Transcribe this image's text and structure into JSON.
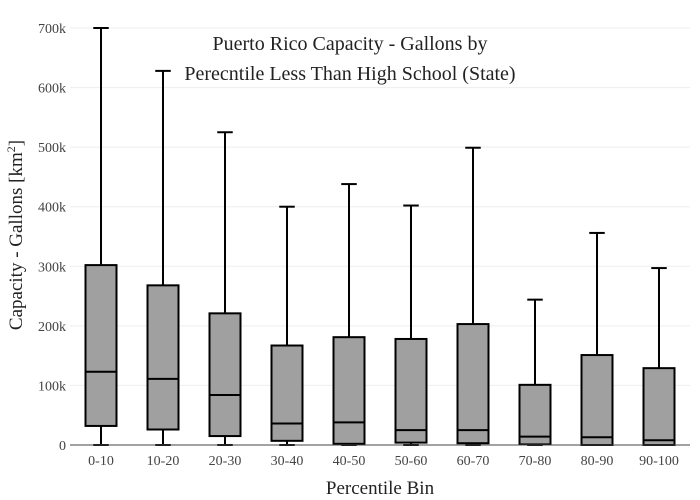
{
  "chart_data": {
    "type": "box",
    "title_lines": [
      "Puerto Rico Capacity - Gallons by",
      "Perecntile Less Than High School (State)"
    ],
    "xlabel": "Percentile Bin",
    "ylabel_main": "Capacity - Gallons  [km",
    "ylabel_sup": "2",
    "ylabel_end": "]",
    "ylim": [
      0,
      700000
    ],
    "yticks": [
      {
        "value": 0,
        "label": "0"
      },
      {
        "value": 100000,
        "label": "100k"
      },
      {
        "value": 200000,
        "label": "200k"
      },
      {
        "value": 300000,
        "label": "300k"
      },
      {
        "value": 400000,
        "label": "400k"
      },
      {
        "value": 500000,
        "label": "500k"
      },
      {
        "value": 600000,
        "label": "600k"
      },
      {
        "value": 700000,
        "label": "700k"
      }
    ],
    "categories": [
      "0-10",
      "10-20",
      "20-30",
      "30-40",
      "40-50",
      "50-60",
      "60-70",
      "70-80",
      "80-90",
      "90-100"
    ],
    "boxes": [
      {
        "min": 0,
        "q1": 32000,
        "median": 123000,
        "q3": 302000,
        "max": 700000
      },
      {
        "min": 0,
        "q1": 26000,
        "median": 111000,
        "q3": 268000,
        "max": 628000
      },
      {
        "min": 0,
        "q1": 15000,
        "median": 84000,
        "q3": 221000,
        "max": 525000
      },
      {
        "min": 0,
        "q1": 7000,
        "median": 36000,
        "q3": 167000,
        "max": 400000
      },
      {
        "min": 0,
        "q1": 2000,
        "median": 38000,
        "q3": 181000,
        "max": 438000
      },
      {
        "min": 0,
        "q1": 4000,
        "median": 25000,
        "q3": 178000,
        "max": 402000
      },
      {
        "min": 0,
        "q1": 3000,
        "median": 25000,
        "q3": 203000,
        "max": 499000
      },
      {
        "min": 0,
        "q1": 1000,
        "median": 14000,
        "q3": 101000,
        "max": 244000
      },
      {
        "min": 0,
        "q1": 0,
        "median": 13000,
        "q3": 151000,
        "max": 356000
      },
      {
        "min": 0,
        "q1": 0,
        "median": 8000,
        "q3": 129000,
        "max": 297000
      }
    ],
    "box_fill": "#a0a0a0",
    "box_stroke": "#000000",
    "grid": true,
    "grid_color": "#eeeeee",
    "legend": "none"
  }
}
